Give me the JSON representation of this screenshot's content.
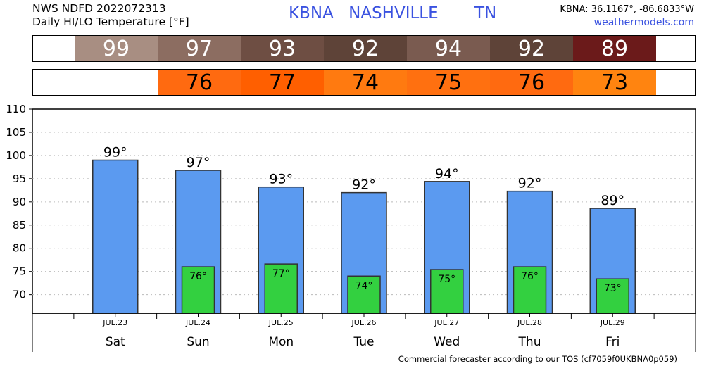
{
  "header": {
    "line1": "NWS NDFD 2022072313",
    "line2": "Daily HI/LO Temperature [°F]",
    "station": "KBNA",
    "city": "NASHVILLE",
    "state": "TN",
    "coords": "KBNA: 36.1167°, -86.6833°W",
    "site": "weathermodels.com"
  },
  "hi_strip": [
    {
      "value": "99",
      "color": "#a88e82",
      "text_color": "#ffffff"
    },
    {
      "value": "97",
      "color": "#8c6d61",
      "text_color": "#ffffff"
    },
    {
      "value": "93",
      "color": "#6e4e43",
      "text_color": "#ffffff"
    },
    {
      "value": "92",
      "color": "#5e4338",
      "text_color": "#ffffff"
    },
    {
      "value": "94",
      "color": "#7a5b50",
      "text_color": "#ffffff"
    },
    {
      "value": "92",
      "color": "#5e4338",
      "text_color": "#ffffff"
    },
    {
      "value": "89",
      "color": "#6b1a1a",
      "text_color": "#ffffff"
    }
  ],
  "lo_strip": [
    {
      "value": "",
      "color": "#ffffff",
      "text_color": "#000000"
    },
    {
      "value": "76",
      "color": "#ff6a10",
      "text_color": "#000000"
    },
    {
      "value": "77",
      "color": "#ff5f00",
      "text_color": "#000000"
    },
    {
      "value": "74",
      "color": "#ff7a10",
      "text_color": "#000000"
    },
    {
      "value": "75",
      "color": "#ff7010",
      "text_color": "#000000"
    },
    {
      "value": "76",
      "color": "#ff6a10",
      "text_color": "#000000"
    },
    {
      "value": "73",
      "color": "#ff8410",
      "text_color": "#000000"
    }
  ],
  "chart_data": {
    "type": "bar",
    "title": "Daily HI/LO Temperature [°F]",
    "categories": [
      "JUL.23",
      "JUL.24",
      "JUL.25",
      "JUL.26",
      "JUL.27",
      "JUL.28",
      "JUL.29"
    ],
    "weekdays": [
      "Sat",
      "Sun",
      "Mon",
      "Tue",
      "Wed",
      "Thu",
      "Fri"
    ],
    "series": [
      {
        "name": "",
        "values": [
          99,
          96.8,
          93.2,
          92,
          94.4,
          92.3,
          88.6
        ],
        "labels": [
          "99°",
          "97°",
          "93°",
          "92°",
          "94°",
          "92°",
          "89°"
        ],
        "color": "#5b9af0"
      },
      {
        "name": "",
        "values": [
          null,
          76,
          76.6,
          74,
          75.4,
          76,
          73.4
        ],
        "labels": [
          "",
          "76°",
          "77°",
          "74°",
          "75°",
          "76°",
          "73°"
        ],
        "color": "#33d040"
      }
    ],
    "ylim": [
      66,
      110
    ],
    "yticks": [
      70,
      75,
      80,
      85,
      90,
      95,
      100,
      105,
      110
    ],
    "grid": true,
    "xlabel": "",
    "ylabel": ""
  },
  "footer": "Commercial forecaster according to our TOS (cf7059f0UKBNA0p059)"
}
